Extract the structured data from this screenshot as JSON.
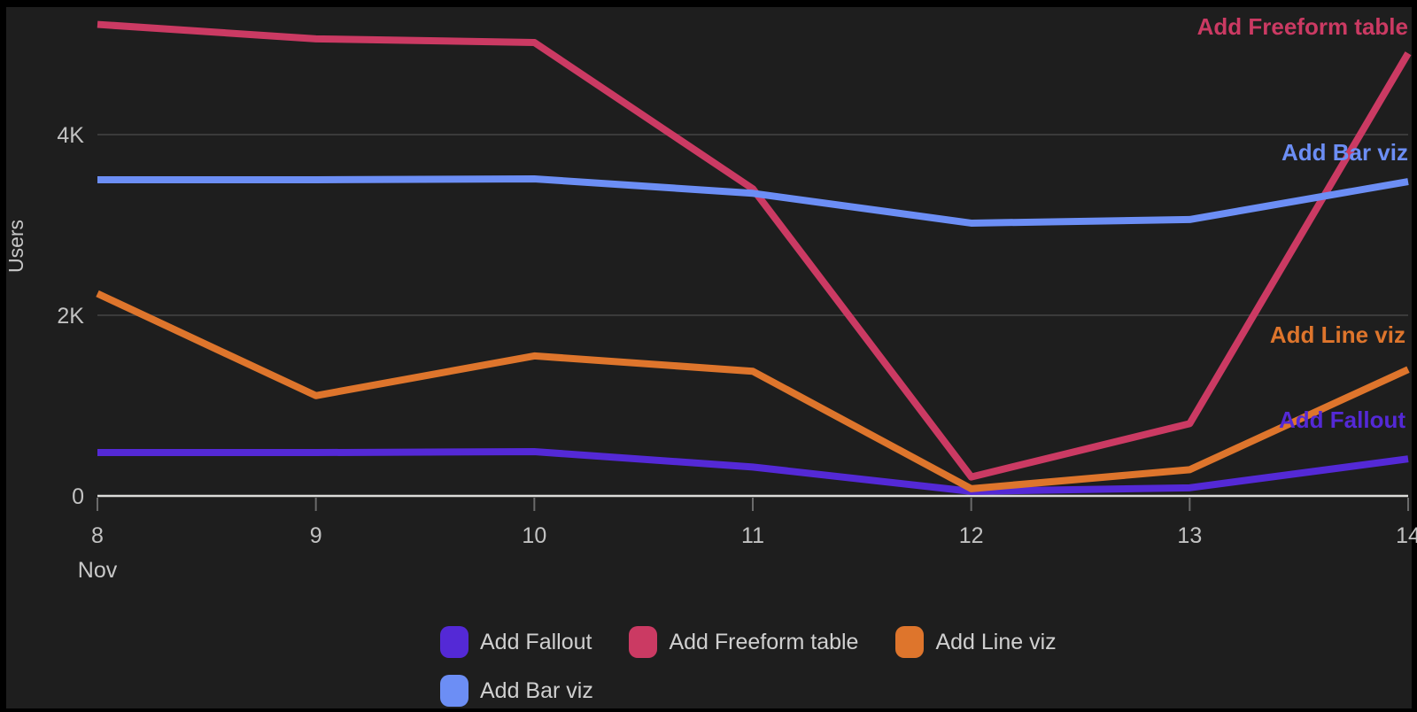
{
  "chart_data": {
    "type": "line",
    "title": "",
    "ylabel": "Users",
    "x_axis_unit_label": "Nov",
    "x": [
      8,
      9,
      10,
      11,
      12,
      13,
      14
    ],
    "x_tick_labels": [
      "8",
      "9",
      "10",
      "11",
      "12",
      "13",
      "14"
    ],
    "y_ticks": [
      0,
      2000,
      4000
    ],
    "y_tick_labels": [
      "0",
      "2K",
      "4K"
    ],
    "ylim": [
      0,
      5500
    ],
    "grid": "horizontal",
    "legend_position": "bottom",
    "series": [
      {
        "name": "Add Fallout",
        "color": "#5429d6",
        "values": [
          480,
          480,
          490,
          320,
          50,
          90,
          410
        ]
      },
      {
        "name": "Add Freeform table",
        "color": "#cb3a63",
        "values": [
          5220,
          5060,
          5020,
          3400,
          210,
          800,
          4900
        ]
      },
      {
        "name": "Add Line viz",
        "color": "#de752c",
        "values": [
          2240,
          1110,
          1550,
          1380,
          80,
          290,
          1400
        ]
      },
      {
        "name": "Add Bar viz",
        "color": "#6c8ef5",
        "values": [
          3500,
          3500,
          3510,
          3350,
          3020,
          3060,
          3480
        ]
      }
    ]
  },
  "legend": {
    "items": [
      {
        "label": "Add Fallout",
        "color": "#5429d6"
      },
      {
        "label": "Add Freeform table",
        "color": "#cb3a63"
      },
      {
        "label": "Add Line viz",
        "color": "#de752c"
      },
      {
        "label": "Add Bar viz",
        "color": "#6c8ef5"
      }
    ]
  },
  "colors": {
    "background": "#1e1e1e",
    "frame": "#000000",
    "grid_line": "#3b3b3b",
    "axis_line": "#dcdcda",
    "tick_mark": "#6a6a6a",
    "tick_text": "#c2c2c2",
    "axis_text": "#c8c8c8",
    "legend_text": "#d0d0d0"
  }
}
